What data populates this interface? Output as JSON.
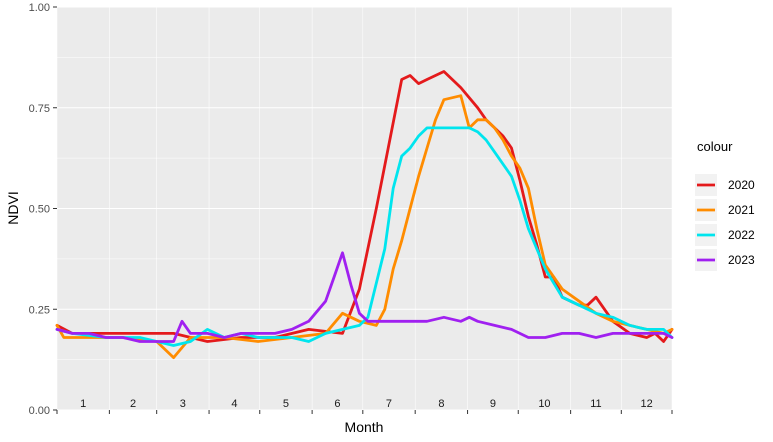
{
  "chart_data": {
    "type": "line",
    "title": "",
    "xlabel": "Month",
    "ylabel": "NDVI",
    "ylim": [
      0,
      1
    ],
    "xlim": [
      1,
      365
    ],
    "yticks": [
      {
        "value": 0,
        "label": "0.00"
      },
      {
        "value": 0.25,
        "label": "0.25"
      },
      {
        "value": 0.5,
        "label": "0.50"
      },
      {
        "value": 0.75,
        "label": "0.75"
      },
      {
        "value": 1,
        "label": "1.00"
      }
    ],
    "month_bounds": [
      1,
      32,
      60,
      91,
      121,
      152,
      182,
      213,
      244,
      274,
      305,
      335,
      365
    ],
    "month_labels": [
      "1",
      "2",
      "3",
      "4",
      "5",
      "6",
      "7",
      "8",
      "9",
      "10",
      "11",
      "12"
    ],
    "grid": true,
    "legend": {
      "title": "colour",
      "position": "right"
    },
    "series": [
      {
        "name": "2020",
        "color": "#e41a1c",
        "x": [
          1,
          10,
          30,
          50,
          70,
          90,
          110,
          130,
          150,
          170,
          180,
          190,
          197,
          205,
          210,
          215,
          220,
          230,
          240,
          250,
          255,
          260,
          265,
          270,
          275,
          280,
          285,
          290,
          295,
          300,
          305,
          310,
          315,
          320,
          330,
          340,
          350,
          355,
          360,
          365
        ],
        "y": [
          0.21,
          0.19,
          0.19,
          0.19,
          0.19,
          0.17,
          0.18,
          0.18,
          0.2,
          0.19,
          0.3,
          0.5,
          0.65,
          0.82,
          0.83,
          0.81,
          0.82,
          0.84,
          0.8,
          0.75,
          0.72,
          0.7,
          0.68,
          0.65,
          0.57,
          0.48,
          0.41,
          0.33,
          0.33,
          0.28,
          0.27,
          0.26,
          0.26,
          0.28,
          0.22,
          0.19,
          0.18,
          0.19,
          0.17,
          0.2
        ]
      },
      {
        "name": "2021",
        "color": "#ff8c00",
        "x": [
          1,
          5,
          20,
          40,
          60,
          70,
          80,
          100,
          120,
          140,
          160,
          170,
          180,
          190,
          195,
          200,
          205,
          210,
          215,
          220,
          225,
          230,
          240,
          245,
          250,
          255,
          260,
          265,
          270,
          275,
          280,
          285,
          290,
          300,
          310,
          320,
          330,
          340,
          350,
          360,
          365
        ],
        "y": [
          0.21,
          0.18,
          0.18,
          0.18,
          0.17,
          0.13,
          0.18,
          0.18,
          0.17,
          0.18,
          0.19,
          0.24,
          0.22,
          0.21,
          0.25,
          0.35,
          0.42,
          0.5,
          0.58,
          0.65,
          0.72,
          0.77,
          0.78,
          0.7,
          0.72,
          0.72,
          0.7,
          0.67,
          0.63,
          0.6,
          0.55,
          0.45,
          0.36,
          0.3,
          0.27,
          0.24,
          0.22,
          0.21,
          0.2,
          0.19,
          0.2
        ]
      },
      {
        "name": "2022",
        "color": "#00e5ee",
        "x": [
          1,
          10,
          30,
          50,
          70,
          80,
          90,
          100,
          110,
          120,
          140,
          150,
          160,
          170,
          180,
          185,
          195,
          200,
          205,
          210,
          215,
          220,
          230,
          240,
          245,
          250,
          255,
          260,
          270,
          275,
          280,
          290,
          300,
          310,
          320,
          330,
          340,
          350,
          360,
          365
        ],
        "y": [
          0.2,
          0.19,
          0.18,
          0.18,
          0.16,
          0.17,
          0.2,
          0.18,
          0.19,
          0.18,
          0.18,
          0.17,
          0.19,
          0.2,
          0.21,
          0.23,
          0.4,
          0.55,
          0.63,
          0.65,
          0.68,
          0.7,
          0.7,
          0.7,
          0.7,
          0.69,
          0.67,
          0.64,
          0.58,
          0.52,
          0.45,
          0.35,
          0.28,
          0.26,
          0.24,
          0.23,
          0.21,
          0.2,
          0.2,
          0.18
        ]
      },
      {
        "name": "2023",
        "color": "#a020f0",
        "x": [
          1,
          10,
          20,
          30,
          40,
          50,
          60,
          70,
          75,
          80,
          90,
          100,
          110,
          120,
          130,
          140,
          150,
          160,
          165,
          170,
          175,
          180,
          185,
          190,
          200,
          210,
          220,
          230,
          240,
          245,
          250,
          260,
          270,
          280,
          290,
          300,
          310,
          320,
          330,
          340,
          350,
          360,
          365
        ],
        "y": [
          0.2,
          0.19,
          0.19,
          0.18,
          0.18,
          0.17,
          0.17,
          0.17,
          0.22,
          0.19,
          0.19,
          0.18,
          0.19,
          0.19,
          0.19,
          0.2,
          0.22,
          0.27,
          0.33,
          0.39,
          0.31,
          0.24,
          0.22,
          0.22,
          0.22,
          0.22,
          0.22,
          0.23,
          0.22,
          0.23,
          0.22,
          0.21,
          0.2,
          0.18,
          0.18,
          0.19,
          0.19,
          0.18,
          0.19,
          0.19,
          0.19,
          0.19,
          0.18
        ]
      }
    ]
  }
}
